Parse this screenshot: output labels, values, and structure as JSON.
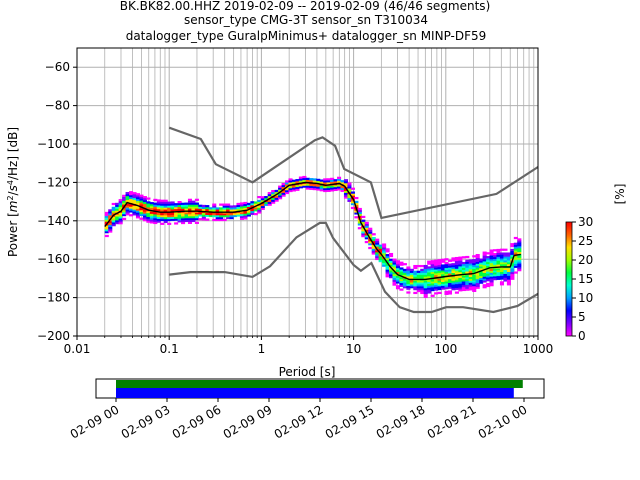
{
  "chart_data": {
    "type": "heatmap",
    "title_lines": [
      "BK.BK82.00.HHZ   2019-02-09 -- 2019-02-09  (46/46 segments)",
      "sensor_type CMG-3T sensor_sn T310034",
      "datalogger_type GuralpMinimus+ datalogger_sn MINP-DF59"
    ],
    "xlabel": "Period [s]",
    "ylabel": "Power [m²/s⁴/Hz] [dB]",
    "ylabel_parts": {
      "pre": "Power [",
      "m": "m",
      "sup1": "2",
      "mid": "/",
      "s": "s",
      "sup2": "4",
      "post": "/Hz] [dB]"
    },
    "x_scale": "log",
    "xlim": [
      0.01,
      1000
    ],
    "ylim": [
      -200,
      -50
    ],
    "x_ticks": [
      {
        "value": 0.01,
        "label": "0.01"
      },
      {
        "value": 0.1,
        "label": "0.1"
      },
      {
        "value": 1,
        "label": "1"
      },
      {
        "value": 10,
        "label": "10"
      },
      {
        "value": 100,
        "label": "100"
      },
      {
        "value": 1000,
        "label": "1000"
      }
    ],
    "y_ticks": [
      -200,
      -180,
      -160,
      -140,
      -120,
      -100,
      -80,
      -60
    ],
    "y_tick_labels": [
      "−200",
      "−180",
      "−160",
      "−140",
      "−120",
      "−100",
      "−80",
      "−60"
    ],
    "grid": true,
    "noise_model_high": [
      [
        0.1,
        -91.5
      ],
      [
        0.22,
        -97.4
      ],
      [
        0.32,
        -110.5
      ],
      [
        0.8,
        -120
      ],
      [
        3.8,
        -98
      ],
      [
        4.6,
        -96.5
      ],
      [
        6.3,
        -101
      ],
      [
        7.9,
        -113
      ],
      [
        15.4,
        -120
      ],
      [
        20,
        -138.5
      ],
      [
        354.8,
        -126
      ],
      [
        1000,
        -112
      ]
    ],
    "noise_model_low": [
      [
        0.1,
        -168
      ],
      [
        0.17,
        -166.7
      ],
      [
        0.4,
        -166.7
      ],
      [
        0.8,
        -169.2
      ],
      [
        1.24,
        -163.7
      ],
      [
        2.4,
        -148.6
      ],
      [
        4.3,
        -141.1
      ],
      [
        5,
        -141.1
      ],
      [
        6,
        -149
      ],
      [
        10,
        -163
      ],
      [
        12,
        -166
      ],
      [
        15.6,
        -162
      ],
      [
        21.9,
        -177
      ],
      [
        31.6,
        -185
      ],
      [
        45,
        -187.5
      ],
      [
        70,
        -187.5
      ],
      [
        101,
        -185
      ],
      [
        154,
        -185
      ],
      [
        328,
        -187.5
      ],
      [
        600,
        -184.4
      ],
      [
        1000,
        -178
      ]
    ],
    "mode_curve": [
      [
        0.02,
        -143
      ],
      [
        0.025,
        -137
      ],
      [
        0.03,
        -135
      ],
      [
        0.035,
        -130.5
      ],
      [
        0.045,
        -132
      ],
      [
        0.06,
        -134.5
      ],
      [
        0.08,
        -135.5
      ],
      [
        0.1,
        -135.5
      ],
      [
        0.15,
        -135
      ],
      [
        0.2,
        -135
      ],
      [
        0.3,
        -135.5
      ],
      [
        0.5,
        -135.5
      ],
      [
        0.7,
        -134.5
      ],
      [
        1,
        -131
      ],
      [
        1.5,
        -126
      ],
      [
        2,
        -121.5
      ],
      [
        3,
        -120
      ],
      [
        4,
        -120.5
      ],
      [
        5,
        -121.5
      ],
      [
        6,
        -121
      ],
      [
        7,
        -120.5
      ],
      [
        8,
        -122
      ],
      [
        10,
        -129
      ],
      [
        12,
        -141
      ],
      [
        15,
        -149
      ],
      [
        18,
        -155
      ],
      [
        20,
        -157.5
      ],
      [
        25,
        -164
      ],
      [
        30,
        -168
      ],
      [
        40,
        -170.5
      ],
      [
        60,
        -170.5
      ],
      [
        100,
        -169
      ],
      [
        150,
        -168
      ],
      [
        200,
        -167.5
      ],
      [
        300,
        -164.5
      ],
      [
        400,
        -164
      ],
      [
        500,
        -164
      ],
      [
        550,
        -158
      ],
      [
        650,
        -157.5
      ]
    ],
    "colorbar": {
      "label": "[%]",
      "min": 0,
      "max": 30,
      "ticks": [
        0,
        5,
        10,
        15,
        20,
        25,
        30
      ],
      "colors": [
        "#ff00ff",
        "#7a00ff",
        "#0000ff",
        "#00a0ff",
        "#00ffd0",
        "#00ff40",
        "#a0ff00",
        "#ffe000",
        "#ff6000",
        "#ff0000"
      ]
    },
    "time_axis": {
      "ticks": [
        {
          "pos": 0,
          "label": "02-09 00"
        },
        {
          "pos": 0.125,
          "label": "02-09 03"
        },
        {
          "pos": 0.25,
          "label": "02-09 06"
        },
        {
          "pos": 0.375,
          "label": "02-09 09"
        },
        {
          "pos": 0.5,
          "label": "02-09 12"
        },
        {
          "pos": 0.625,
          "label": "02-09 15"
        },
        {
          "pos": 0.75,
          "label": "02-09 18"
        },
        {
          "pos": 0.875,
          "label": "02-09 21"
        },
        {
          "pos": 1,
          "label": "02-10 00"
        }
      ],
      "data_bar": {
        "start": 0,
        "end": 0.997,
        "color": "#008000"
      },
      "psd_bar": {
        "start": 0,
        "end": 0.975,
        "color": "#0000ff"
      }
    }
  }
}
